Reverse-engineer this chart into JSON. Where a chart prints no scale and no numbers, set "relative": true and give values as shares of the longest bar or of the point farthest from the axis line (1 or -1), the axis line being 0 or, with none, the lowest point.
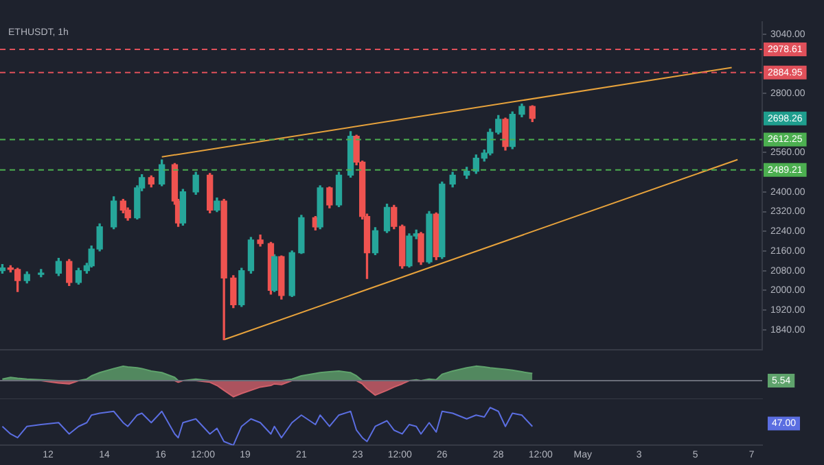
{
  "chart_data": [
    {
      "type": "candlestick",
      "title": "ETHUSDT, 1h",
      "tick_labels": "y",
      "x": [
        "--04-10T09:00",
        "--04-10T16:00",
        "--04-10T22:00",
        "--04-11T06:00",
        "--04-11T18:00",
        "--04-12T09:00",
        "--04-12T18:00",
        "--04-13T02:00",
        "--04-13T09:00",
        "--04-13T13:00",
        "--04-13T20:00",
        "--04-14T08:00",
        "--04-14T16:00",
        "--04-14T20:00",
        "--04-15T04:00",
        "--04-15T08:00",
        "--04-15T16:00",
        "--04-16T01:00",
        "--04-16T12:00",
        "--04-16T15:00",
        "--04-16T19:00",
        "--04-17T06:00",
        "--04-17T18:00",
        "--04-18T00:00",
        "--04-18T06:00",
        "--04-18T14:00",
        "--04-18T21:00",
        "--04-19T05:00",
        "--04-19T13:00",
        "--04-19T22:00",
        "--04-20T01:00",
        "--04-20T07:00",
        "--04-20T16:00",
        "--04-21T00:00",
        "--04-21T12:00",
        "--04-21T16:00",
        "--04-22T00:00",
        "--04-22T08:00",
        "--04-22T18:00",
        "--04-22T23:00",
        "--04-23T04:00",
        "--04-23T08:00",
        "--04-23T15:00",
        "--04-24T01:00",
        "--04-24T07:00",
        "--04-24T14:00",
        "--04-24T20:00",
        "--04-25T02:00",
        "--04-25T06:00",
        "--04-25T13:00",
        "--04-25T19:00",
        "--04-26T00:00",
        "--04-26T09:00",
        "--04-26T21:00",
        "--04-27T05:00",
        "--04-27T12:00",
        "--04-27T17:00",
        "--04-28T00:00",
        "--04-28T06:00",
        "--04-28T12:00",
        "--04-28T20:00",
        "--04-29T05:00"
      ],
      "ohlc": [
        [
          2080,
          2105,
          2070,
          2091
        ],
        [
          2091,
          2100,
          2075,
          2085
        ],
        [
          2085,
          2090,
          1995,
          2040
        ],
        [
          2040,
          2075,
          2030,
          2065
        ],
        [
          2065,
          2085,
          2055,
          2070
        ],
        [
          2070,
          2130,
          2060,
          2118
        ],
        [
          2118,
          2125,
          2020,
          2032
        ],
        [
          2032,
          2090,
          2025,
          2080
        ],
        [
          2080,
          2110,
          2070,
          2100
        ],
        [
          2100,
          2180,
          2095,
          2168
        ],
        [
          2168,
          2270,
          2160,
          2258
        ],
        [
          2258,
          2380,
          2250,
          2363
        ],
        [
          2363,
          2370,
          2315,
          2326
        ],
        [
          2326,
          2335,
          2285,
          2295
        ],
        [
          2295,
          2425,
          2290,
          2416
        ],
        [
          2416,
          2470,
          2405,
          2458
        ],
        [
          2458,
          2465,
          2420,
          2432
        ],
        [
          2432,
          2530,
          2425,
          2510
        ],
        [
          2510,
          2515,
          2350,
          2363
        ],
        [
          2363,
          2370,
          2260,
          2274
        ],
        [
          2274,
          2410,
          2265,
          2400
        ],
        [
          2400,
          2480,
          2390,
          2468
        ],
        [
          2468,
          2475,
          2315,
          2326
        ],
        [
          2326,
          2375,
          2320,
          2363
        ],
        [
          2363,
          2370,
          1800,
          2050
        ],
        [
          2050,
          2060,
          1930,
          1942
        ],
        [
          1942,
          2090,
          1935,
          2080
        ],
        [
          2080,
          2215,
          2070,
          2205
        ],
        [
          2205,
          2225,
          2180,
          2190
        ],
        [
          2190,
          2195,
          1985,
          2000
        ],
        [
          2000,
          2145,
          1995,
          2137
        ],
        [
          2137,
          2140,
          1965,
          1979
        ],
        [
          1979,
          2160,
          1975,
          2153
        ],
        [
          2153,
          2305,
          2150,
          2295
        ],
        [
          2295,
          2300,
          2245,
          2258
        ],
        [
          2258,
          2425,
          2250,
          2416
        ],
        [
          2416,
          2420,
          2335,
          2347
        ],
        [
          2347,
          2480,
          2340,
          2468
        ],
        [
          2468,
          2645,
          2460,
          2626
        ],
        [
          2626,
          2630,
          2510,
          2521
        ],
        [
          2521,
          2525,
          2290,
          2300
        ],
        [
          2300,
          2310,
          2048,
          2153
        ],
        [
          2153,
          2255,
          2145,
          2242
        ],
        [
          2242,
          2350,
          2235,
          2337
        ],
        [
          2337,
          2345,
          2250,
          2260
        ],
        [
          2260,
          2265,
          2090,
          2100
        ],
        [
          2100,
          2230,
          2095,
          2221
        ],
        [
          2221,
          2245,
          2210,
          2230
        ],
        [
          2230,
          2235,
          2105,
          2116
        ],
        [
          2116,
          2320,
          2110,
          2310
        ],
        [
          2310,
          2315,
          2125,
          2137
        ],
        [
          2137,
          2440,
          2130,
          2432
        ],
        [
          2432,
          2480,
          2420,
          2468
        ],
        [
          2468,
          2500,
          2455,
          2484
        ],
        [
          2484,
          2550,
          2475,
          2537
        ],
        [
          2537,
          2570,
          2525,
          2558
        ],
        [
          2558,
          2655,
          2550,
          2642
        ],
        [
          2642,
          2710,
          2635,
          2695
        ],
        [
          2695,
          2700,
          2570,
          2584
        ],
        [
          2584,
          2725,
          2575,
          2715
        ],
        [
          2715,
          2757,
          2705,
          2747
        ],
        [
          2747,
          2750,
          2685,
          2698.26
        ]
      ],
      "colors": [
        "#26a69a",
        "#ef5350",
        "#ef5350",
        "#26a69a",
        "#26a69a",
        "#26a69a",
        "#ef5350",
        "#26a69a",
        "#26a69a",
        "#26a69a",
        "#26a69a",
        "#26a69a",
        "#ef5350",
        "#ef5350",
        "#26a69a",
        "#26a69a",
        "#ef5350",
        "#26a69a",
        "#ef5350",
        "#ef5350",
        "#26a69a",
        "#26a69a",
        "#ef5350",
        "#26a69a",
        "#ef5350",
        "#ef5350",
        "#26a69a",
        "#26a69a",
        "#ef5350",
        "#ef5350",
        "#26a69a",
        "#ef5350",
        "#26a69a",
        "#26a69a",
        "#ef5350",
        "#26a69a",
        "#ef5350",
        "#26a69a",
        "#26a69a",
        "#ef5350",
        "#ef5350",
        "#ef5350",
        "#26a69a",
        "#26a69a",
        "#ef5350",
        "#ef5350",
        "#26a69a",
        "#26a69a",
        "#ef5350",
        "#26a69a",
        "#ef5350",
        "#26a69a",
        "#26a69a",
        "#26a69a",
        "#26a69a",
        "#26a69a",
        "#26a69a",
        "#26a69a",
        "#ef5350",
        "#26a69a",
        "#26a69a",
        "#ef5350"
      ],
      "series": [
        {
          "type": "line",
          "color": "#e8a33c",
          "x": [
            "--04-16T01:00",
            "--05-06T07:00"
          ],
          "values": [
            2542,
            2905
          ]
        },
        {
          "type": "line",
          "color": "#e8a33c",
          "x": [
            "--04-18T06:00",
            "--05-06T12:00"
          ],
          "values": [
            1800,
            2531
          ]
        }
      ],
      "ref_lines": [
        {
          "axis": "y",
          "value": 2978.61,
          "label": "2978.61",
          "color": "#e0505a",
          "line_style": "dashed"
        },
        {
          "axis": "y",
          "value": 2884.95,
          "label": "2884.95",
          "color": "#e0505a",
          "line_style": "dashed"
        },
        {
          "axis": "y",
          "value": 2612.25,
          "label": "2612.25",
          "color": "#4caf50",
          "line_style": "dashed"
        },
        {
          "axis": "y",
          "value": 2489.21,
          "label": "2489.21",
          "color": "#4caf50",
          "line_style": "dashed"
        }
      ],
      "annotations": [
        "2698.26"
      ],
      "xlim": [
        "--04-10T07:00",
        "--05-07T09:00"
      ],
      "ylim": [
        1760,
        3090
      ],
      "yticks": [
        {
          "value": 1840,
          "label": "1840.00"
        },
        {
          "value": 1920,
          "label": "1920.00"
        },
        {
          "value": 2000,
          "label": "2000.00"
        },
        {
          "value": 2080,
          "label": "2080.00"
        },
        {
          "value": 2160,
          "label": "2160.00"
        },
        {
          "value": 2240,
          "label": "2240.00"
        },
        {
          "value": 2320,
          "label": "2320.00"
        },
        {
          "value": 2400,
          "label": "2400.00"
        },
        {
          "value": 2560,
          "label": "2560.00"
        },
        {
          "value": 2800,
          "label": "2800.00"
        },
        {
          "value": 3040,
          "label": "3040.00"
        }
      ]
    },
    {
      "type": "area",
      "relative": true,
      "tick_labels": false,
      "x": [
        "--04-10T09:00",
        "--04-10T16:00",
        "--04-10T22:00",
        "--04-11T06:00",
        "--04-11T18:00",
        "--04-12T09:00",
        "--04-12T18:00",
        "--04-13T02:00",
        "--04-13T09:00",
        "--04-13T13:00",
        "--04-13T20:00",
        "--04-14T08:00",
        "--04-14T16:00",
        "--04-14T20:00",
        "--04-15T04:00",
        "--04-15T08:00",
        "--04-15T16:00",
        "--04-16T01:00",
        "--04-16T12:00",
        "--04-16T15:00",
        "--04-16T19:00",
        "--04-17T06:00",
        "--04-17T18:00",
        "--04-18T00:00",
        "--04-18T06:00",
        "--04-18T14:00",
        "--04-18T21:00",
        "--04-19T05:00",
        "--04-19T13:00",
        "--04-19T22:00",
        "--04-20T01:00",
        "--04-20T07:00",
        "--04-20T16:00",
        "--04-21T00:00",
        "--04-21T12:00",
        "--04-21T16:00",
        "--04-22T00:00",
        "--04-22T08:00",
        "--04-22T18:00",
        "--04-22T23:00",
        "--04-23T04:00",
        "--04-23T08:00",
        "--04-23T15:00",
        "--04-24T01:00",
        "--04-24T07:00",
        "--04-24T14:00",
        "--04-24T20:00",
        "--04-25T02:00",
        "--04-25T06:00",
        "--04-25T13:00",
        "--04-25T19:00",
        "--04-26T00:00",
        "--04-26T09:00",
        "--04-26T21:00",
        "--04-27T05:00",
        "--04-27T12:00",
        "--04-27T17:00",
        "--04-28T00:00",
        "--04-28T06:00",
        "--04-28T12:00",
        "--04-28T20:00",
        "--04-29T05:00"
      ],
      "series": [
        {
          "color": "#5fa36c",
          "values": [
            0.1,
            0.2,
            0.15,
            0.1,
            0.05,
            0,
            0,
            0,
            0.1,
            0.3,
            0.5,
            0.75,
            0.9,
            0.85,
            0.8,
            0.75,
            0.6,
            0.5,
            0.2,
            0,
            0,
            0.1,
            0,
            0,
            0,
            0,
            0,
            0,
            0,
            0,
            0,
            0,
            0.1,
            0.3,
            0.45,
            0.5,
            0.55,
            0.6,
            0.5,
            0.3,
            0,
            0,
            0,
            0,
            0,
            0,
            0,
            0.05,
            0,
            0.1,
            0.05,
            0.4,
            0.6,
            0.8,
            0.9,
            0.85,
            0.8,
            0.75,
            0.7,
            0.65,
            0.55,
            0.45
          ]
        },
        {
          "color": "#d0606a",
          "values": [
            0,
            0,
            0,
            0,
            0,
            -0.15,
            -0.2,
            0,
            0,
            0,
            0,
            0,
            0,
            0,
            0,
            0,
            0,
            0,
            0,
            -0.1,
            0,
            0,
            -0.1,
            -0.3,
            -0.6,
            -1,
            -0.8,
            -0.6,
            -0.4,
            -0.3,
            -0.2,
            -0.25,
            0,
            0,
            0,
            0,
            0,
            0,
            0,
            0,
            -0.2,
            -0.5,
            -0.9,
            -0.6,
            -0.4,
            -0.2,
            0,
            0,
            0,
            0,
            0,
            0,
            0,
            0,
            0,
            0,
            0,
            0,
            0,
            0,
            0,
            0
          ]
        }
      ],
      "annotations": [
        "5.54"
      ],
      "xlim": [
        "--04-10T07:00",
        "--05-07T09:00"
      ]
    },
    {
      "type": "line",
      "relative": true,
      "tick_labels": "x",
      "x": [
        "--04-10T09:00",
        "--04-10T16:00",
        "--04-10T22:00",
        "--04-11T06:00",
        "--04-11T18:00",
        "--04-12T09:00",
        "--04-12T18:00",
        "--04-13T02:00",
        "--04-13T09:00",
        "--04-13T13:00",
        "--04-13T20:00",
        "--04-14T08:00",
        "--04-14T16:00",
        "--04-14T20:00",
        "--04-15T04:00",
        "--04-15T08:00",
        "--04-15T16:00",
        "--04-16T01:00",
        "--04-16T12:00",
        "--04-16T15:00",
        "--04-16T19:00",
        "--04-17T06:00",
        "--04-17T18:00",
        "--04-18T00:00",
        "--04-18T06:00",
        "--04-18T14:00",
        "--04-18T21:00",
        "--04-19T05:00",
        "--04-19T13:00",
        "--04-19T22:00",
        "--04-20T01:00",
        "--04-20T07:00",
        "--04-20T16:00",
        "--04-21T00:00",
        "--04-21T12:00",
        "--04-21T16:00",
        "--04-22T00:00",
        "--04-22T08:00",
        "--04-22T18:00",
        "--04-22T23:00",
        "--04-23T04:00",
        "--04-23T08:00",
        "--04-23T15:00",
        "--04-24T01:00",
        "--04-24T07:00",
        "--04-24T14:00",
        "--04-24T20:00",
        "--04-25T02:00",
        "--04-25T06:00",
        "--04-25T13:00",
        "--04-25T19:00",
        "--04-26T00:00",
        "--04-26T09:00",
        "--04-26T21:00",
        "--04-27T05:00",
        "--04-27T12:00",
        "--04-27T17:00",
        "--04-28T00:00",
        "--04-28T06:00",
        "--04-28T12:00",
        "--04-28T20:00",
        "--04-29T05:00"
      ],
      "series": [
        {
          "color": "#5b6ee1",
          "values": [
            0.5,
            0.3,
            0.2,
            0.5,
            0.55,
            0.6,
            0.3,
            0.5,
            0.6,
            0.8,
            0.85,
            0.9,
            0.6,
            0.5,
            0.8,
            0.85,
            0.6,
            0.9,
            0.3,
            0.2,
            0.6,
            0.7,
            0.3,
            0.45,
            0.1,
            0,
            0.5,
            0.7,
            0.6,
            0.3,
            0.5,
            0.2,
            0.6,
            0.8,
            0.55,
            0.8,
            0.5,
            0.8,
            0.9,
            0.4,
            0.2,
            0.1,
            0.5,
            0.65,
            0.4,
            0.3,
            0.55,
            0.5,
            0.3,
            0.6,
            0.35,
            0.9,
            0.85,
            0.7,
            0.8,
            0.75,
            1,
            0.9,
            0.5,
            0.85,
            0.8,
            0.5
          ]
        }
      ],
      "annotations": [
        "47.00"
      ],
      "xlim": [
        "--04-10T07:00",
        "--05-07T09:00"
      ],
      "xticks": [
        {
          "value": "--04-12",
          "label": "12"
        },
        {
          "value": "--04-14",
          "label": "14"
        },
        {
          "value": "--04-16",
          "label": "16"
        },
        {
          "value": "--04-17T12:00",
          "label": "12:00"
        },
        {
          "value": "--04-19",
          "label": "19"
        },
        {
          "value": "--04-21",
          "label": "21"
        },
        {
          "value": "--04-23",
          "label": "23"
        },
        {
          "value": "--04-24T12:00",
          "label": "12:00"
        },
        {
          "value": "--04-26",
          "label": "26"
        },
        {
          "value": "--04-28",
          "label": "28"
        },
        {
          "value": "--04-29T12:00",
          "label": "12:00"
        },
        {
          "value": "--05-01",
          "label": "May"
        },
        {
          "value": "--05-03",
          "label": "3"
        },
        {
          "value": "--05-05",
          "label": "5"
        },
        {
          "value": "--05-07",
          "label": "7"
        }
      ]
    }
  ]
}
